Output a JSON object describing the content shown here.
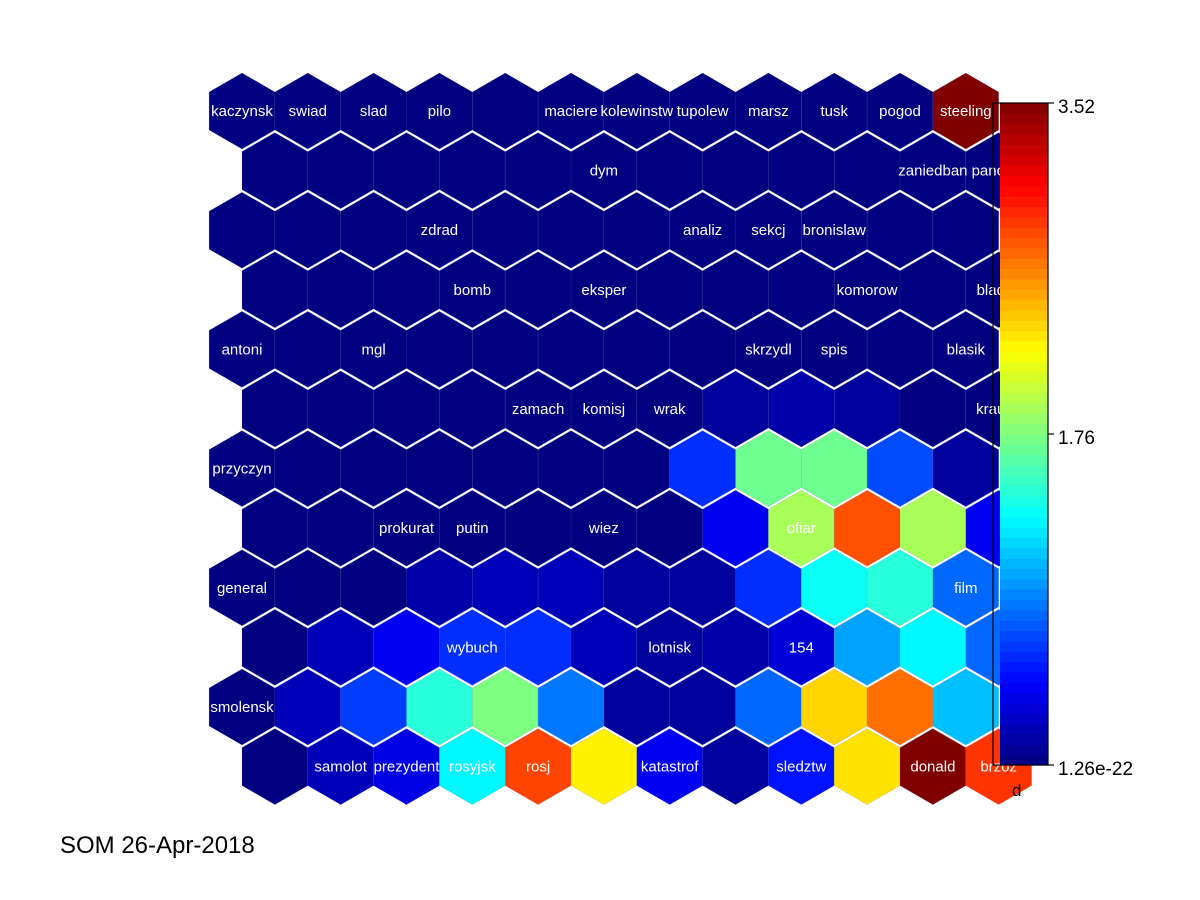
{
  "chart_data": {
    "type": "heatmap",
    "grid": "hexagonal",
    "rows": 12,
    "cols": 12,
    "colormap": "jet",
    "values": [
      [
        0,
        0,
        0,
        0,
        0,
        0,
        0,
        0,
        0,
        0,
        0,
        3.52
      ],
      [
        0,
        0,
        0,
        0,
        0,
        0,
        0,
        0,
        0,
        0,
        0,
        0
      ],
      [
        0,
        0,
        0,
        0,
        0,
        0,
        0,
        0,
        0,
        0,
        0,
        0
      ],
      [
        0,
        0,
        0,
        0,
        0,
        0,
        0,
        0,
        0,
        0,
        0,
        0
      ],
      [
        0,
        0,
        0,
        0,
        0,
        0,
        0,
        0,
        0,
        0,
        0,
        0
      ],
      [
        0,
        0,
        0,
        0,
        0,
        0,
        0,
        0.1,
        0.15,
        0.1,
        0,
        0
      ],
      [
        0,
        0,
        0,
        0,
        0,
        0,
        0,
        0.6,
        1.7,
        1.7,
        0.7,
        0.1
      ],
      [
        0,
        0,
        0,
        0,
        0,
        0,
        0,
        0.4,
        1.9,
        2.8,
        1.9,
        0.4
      ],
      [
        0,
        0,
        0,
        0.15,
        0.2,
        0.2,
        0.1,
        0.1,
        0.6,
        1.35,
        1.45,
        0.8
      ],
      [
        0,
        0.2,
        0.4,
        0.6,
        0.6,
        0.2,
        0.1,
        0.15,
        0.3,
        1.0,
        1.3,
        0.8
      ],
      [
        0,
        0.2,
        0.65,
        1.45,
        1.75,
        0.85,
        0.1,
        0.1,
        0.8,
        2.35,
        2.7,
        1.1
      ],
      [
        0,
        0.2,
        0.35,
        1.3,
        2.85,
        2.25,
        0.4,
        0.1,
        0.5,
        2.3,
        3.52,
        2.9
      ]
    ],
    "labels": [
      [
        "kaczynsk",
        "swiad",
        "slad",
        "pilo",
        "",
        "maciere",
        "kolewinstw",
        "tupolew",
        "marsz",
        "tusk",
        "pogod",
        "steeling"
      ],
      [
        "",
        "",
        "",
        "",
        "",
        "dym",
        "",
        "",
        "",
        "",
        "zaniedban",
        "pancern"
      ],
      [
        "",
        "",
        "",
        "zdrad",
        "",
        "",
        "",
        "analiz",
        "sekcj",
        "bronislaw",
        "",
        ""
      ],
      [
        "",
        "",
        "",
        "bomb",
        "",
        "eksper",
        "",
        "",
        "",
        "komorow",
        "",
        "blad st"
      ],
      [
        "antoni",
        "",
        "mgl",
        "",
        "",
        "",
        "",
        "",
        "skrzydl",
        "spis",
        "",
        "blasik"
      ],
      [
        "",
        "",
        "",
        "",
        "zamach",
        "komisj",
        "wrak",
        "",
        "",
        "",
        "",
        "krauze"
      ],
      [
        "przyczyn",
        "",
        "",
        "",
        "",
        "",
        "",
        "",
        "",
        "",
        "",
        ""
      ],
      [
        "",
        "",
        "prokurat",
        "putin",
        "",
        "wiez",
        "",
        "",
        "ofiar",
        "",
        "",
        ""
      ],
      [
        "general",
        "",
        "",
        "",
        "",
        "",
        "",
        "",
        "",
        "",
        "",
        "film"
      ],
      [
        "",
        "",
        "",
        "wybuch",
        "",
        "",
        "lotnisk",
        "",
        "154",
        "",
        "",
        ""
      ],
      [
        "smolensk",
        "",
        "",
        "",
        "",
        "",
        "",
        "",
        "",
        "",
        "",
        ""
      ],
      [
        "",
        "samolot",
        "prezydent",
        "rosyjsk",
        "rosj",
        "",
        "katastrof",
        "",
        "sledztw",
        "",
        "donald",
        "brzoz"
      ]
    ],
    "colorbar": {
      "max_label": "3.52",
      "mid_label": "1.76",
      "min_label": "1.26e-22",
      "label": "d",
      "min": 0,
      "max": 3.52
    }
  },
  "caption": "SOM 26-Apr-2018"
}
